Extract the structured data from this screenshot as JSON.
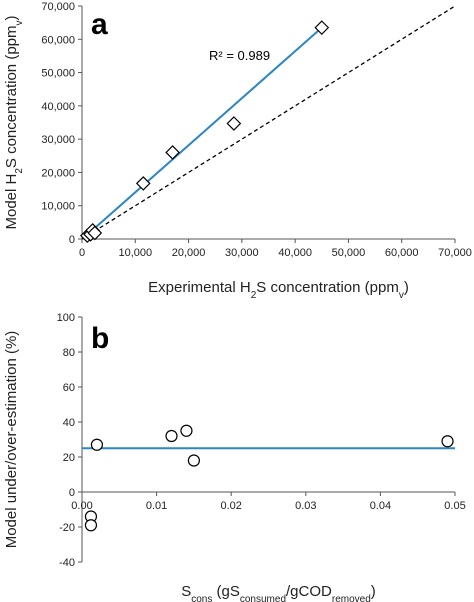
{
  "chart_data": [
    {
      "type": "scatter",
      "panel_label": "a",
      "xlabel": {
        "pre": "Experimental H",
        "sub": "2",
        "mid": "S concentration (ppm",
        "sub2": "v",
        "post": ")"
      },
      "ylabel": {
        "pre": "Model H",
        "sub": "2",
        "mid": "S concentration (ppm",
        "sub2": "v",
        "post": ")"
      },
      "xlim": [
        0,
        70000
      ],
      "ylim": [
        0,
        70000
      ],
      "xticks": [
        0,
        10000,
        20000,
        30000,
        40000,
        50000,
        60000,
        70000
      ],
      "yticks": [
        0,
        10000,
        20000,
        30000,
        40000,
        50000,
        60000,
        70000
      ],
      "xtick_labels": [
        "0",
        "10,000",
        "20,000",
        "30,000",
        "40,000",
        "50,000",
        "60,000",
        "70,000"
      ],
      "ytick_labels": [
        "0",
        "10,000",
        "20,000",
        "30,000",
        "40,000",
        "50,000",
        "60,000",
        "70,000"
      ],
      "points": [
        {
          "x": 1000,
          "y": 1000
        },
        {
          "x": 1600,
          "y": 1400
        },
        {
          "x": 2000,
          "y": 2600
        },
        {
          "x": 2400,
          "y": 1800
        },
        {
          "x": 11500,
          "y": 16700
        },
        {
          "x": 17000,
          "y": 26000
        },
        {
          "x": 28500,
          "y": 34700
        },
        {
          "x": 45000,
          "y": 63500
        }
      ],
      "fit_line": {
        "x": [
          1000,
          45000
        ],
        "y": [
          1300,
          63500
        ],
        "color": "#2e86c1"
      },
      "identity_line": {
        "x": [
          0,
          70000
        ],
        "y": [
          0,
          70000
        ],
        "style": "dashed"
      },
      "annotation": "R² = 0.989",
      "grid": false
    },
    {
      "type": "scatter",
      "panel_label": "b",
      "xlabel": {
        "pre": "S",
        "sub": "cons",
        "mid": " (gS",
        "sub2": "consumed",
        "mid2": "/gCOD",
        "sub3": "removed",
        "post": ")"
      },
      "ylabel": "Model under/over-estimation (%)",
      "xlim": [
        0,
        0.05
      ],
      "ylim": [
        -40,
        100
      ],
      "xticks": [
        0,
        0.01,
        0.02,
        0.03,
        0.04,
        0.05
      ],
      "yticks": [
        -40,
        -20,
        0,
        20,
        40,
        60,
        80,
        100
      ],
      "xtick_labels": [
        "0.00",
        "0.01",
        "0.02",
        "0.03",
        "0.04",
        "0.05"
      ],
      "ytick_labels": [
        "-40",
        "-20",
        "0",
        "20",
        "40",
        "60",
        "80",
        "100"
      ],
      "points": [
        {
          "x": 0.002,
          "y": 27
        },
        {
          "x": 0.0012,
          "y": -14
        },
        {
          "x": 0.0012,
          "y": -19
        },
        {
          "x": 0.012,
          "y": 32
        },
        {
          "x": 0.014,
          "y": 35
        },
        {
          "x": 0.015,
          "y": 18
        },
        {
          "x": 0.049,
          "y": 29
        }
      ],
      "hline": {
        "y": 25,
        "color": "#2e86c1"
      },
      "grid": false
    }
  ]
}
